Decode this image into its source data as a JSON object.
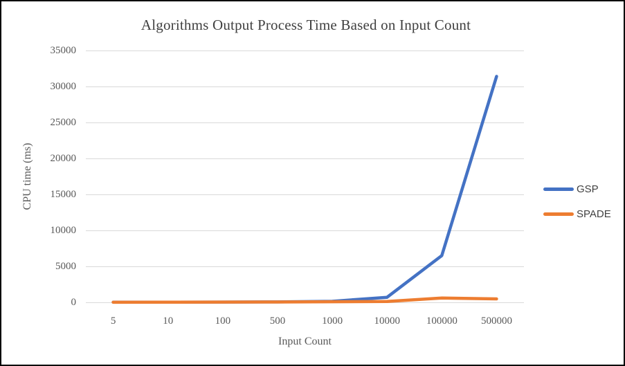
{
  "frame": {
    "background": "#FFFFFF",
    "border_color": "#000000"
  },
  "chart_data": {
    "type": "line",
    "title": "Algorithms Output Process Time Based on Input Count",
    "xlabel": "Input Count",
    "ylabel": "CPU time (ms)",
    "categories": [
      "5",
      "10",
      "100",
      "500",
      "1000",
      "10000",
      "100000",
      "500000"
    ],
    "series": [
      {
        "name": "GSP",
        "color": "#4472C4",
        "values": [
          20,
          25,
          40,
          60,
          150,
          700,
          6500,
          31400
        ]
      },
      {
        "name": "SPADE",
        "color": "#ED7D31",
        "values": [
          15,
          20,
          40,
          50,
          80,
          120,
          600,
          480
        ]
      }
    ],
    "ylim": [
      0,
      35000
    ],
    "yticks": [
      0,
      5000,
      10000,
      15000,
      20000,
      25000,
      30000,
      35000
    ],
    "grid": true,
    "grid_color": "#D9D9D9",
    "tick_color": "#595959",
    "title_color": "#3F3F3F",
    "legend_position": "right"
  }
}
